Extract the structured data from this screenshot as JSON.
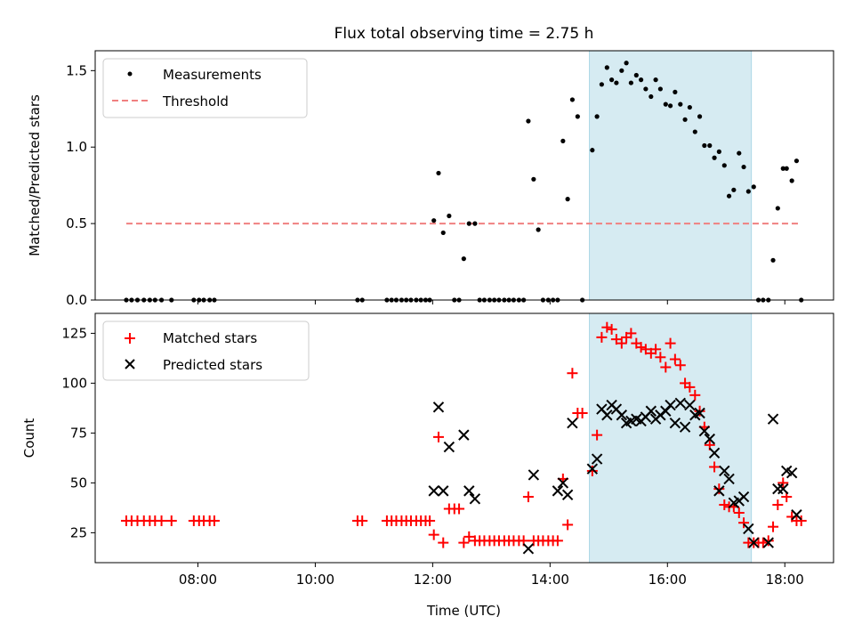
{
  "chart_data": [
    {
      "type": "scatter",
      "title": "Flux total observing time = 2.75 h",
      "xlabel": "",
      "ylabel": "Matched/Predicted stars",
      "xlim": [
        6.25,
        18.83
      ],
      "ylim": [
        0,
        1.63
      ],
      "yticks": [
        0.0,
        0.5,
        1.0,
        1.5
      ],
      "ytick_labels": [
        "0.0",
        "0.5",
        "1.0",
        "1.5"
      ],
      "xticks": [
        8,
        10,
        12,
        14,
        16,
        18
      ],
      "shaded_interval": [
        14.67,
        17.43
      ],
      "legend_position": "upper-left",
      "series": [
        {
          "name": "Measurements",
          "marker": "dot",
          "color": "#000000",
          "x": [
            6.78,
            6.87,
            6.97,
            7.08,
            7.18,
            7.27,
            7.38,
            7.55,
            7.93,
            8.02,
            8.1,
            8.2,
            8.28,
            10.72,
            10.8,
            11.22,
            11.3,
            11.38,
            11.47,
            11.55,
            11.63,
            11.72,
            11.8,
            11.88,
            11.95,
            12.02,
            12.1,
            12.18,
            12.28,
            12.37,
            12.45,
            12.53,
            12.62,
            12.72,
            12.8,
            12.88,
            12.97,
            13.05,
            13.13,
            13.22,
            13.3,
            13.38,
            13.47,
            13.55,
            13.63,
            13.72,
            13.8,
            13.88,
            13.97,
            14.05,
            14.13,
            14.22,
            14.3,
            14.38,
            14.47,
            14.55,
            14.72,
            14.8,
            14.88,
            14.97,
            15.05,
            15.13,
            15.22,
            15.3,
            15.38,
            15.47,
            15.55,
            15.63,
            15.72,
            15.8,
            15.88,
            15.97,
            16.05,
            16.13,
            16.22,
            16.3,
            16.38,
            16.47,
            16.55,
            16.63,
            16.72,
            16.8,
            16.88,
            16.97,
            17.05,
            17.13,
            17.22,
            17.3,
            17.38,
            17.47,
            17.55,
            17.63,
            17.72,
            17.8,
            17.88,
            17.97,
            18.03,
            18.12,
            18.2,
            18.28
          ],
          "y": [
            0,
            0,
            0,
            0,
            0,
            0,
            0,
            0,
            0,
            0,
            0,
            0,
            0,
            0,
            0,
            0,
            0,
            0,
            0,
            0,
            0,
            0,
            0,
            0,
            0,
            0.52,
            0.83,
            0.44,
            0.55,
            0,
            0,
            0.27,
            0.5,
            0.5,
            0,
            0,
            0,
            0,
            0,
            0,
            0,
            0,
            0,
            0,
            1.17,
            0.79,
            0.46,
            0,
            0,
            0,
            0,
            1.04,
            0.66,
            1.31,
            1.2,
            0,
            0.98,
            1.2,
            1.41,
            1.52,
            1.44,
            1.42,
            1.5,
            1.55,
            1.42,
            1.47,
            1.44,
            1.38,
            1.33,
            1.44,
            1.38,
            1.28,
            1.27,
            1.36,
            1.28,
            1.18,
            1.26,
            1.1,
            1.2,
            1.01,
            1.01,
            0.93,
            0.97,
            0.88,
            0.68,
            0.72,
            0.96,
            0.87,
            0.71,
            0.74,
            0,
            0,
            0,
            0.26,
            0.6,
            0.86,
            0.86,
            0.78,
            0.91,
            0
          ]
        },
        {
          "name": "Threshold",
          "marker": "dashed-line",
          "color": "#f08080",
          "x": [
            6.78,
            18.28
          ],
          "y": [
            0.5,
            0.5
          ]
        }
      ]
    },
    {
      "type": "scatter",
      "title": "",
      "xlabel": "Time (UTC)",
      "ylabel": "Count",
      "xlim": [
        6.25,
        18.83
      ],
      "ylim": [
        10,
        135
      ],
      "yticks": [
        25,
        50,
        75,
        100,
        125
      ],
      "ytick_labels": [
        "25",
        "50",
        "75",
        "100",
        "125"
      ],
      "xticks": [
        8,
        10,
        12,
        14,
        16,
        18
      ],
      "xtick_labels": [
        "08:00",
        "10:00",
        "12:00",
        "14:00",
        "16:00",
        "18:00"
      ],
      "shaded_interval": [
        14.67,
        17.43
      ],
      "legend_position": "upper-left",
      "series": [
        {
          "name": "Matched stars",
          "marker": "plus",
          "color": "#ff0000",
          "x": [
            6.78,
            6.87,
            6.97,
            7.08,
            7.18,
            7.27,
            7.38,
            7.55,
            7.93,
            8.02,
            8.1,
            8.2,
            8.28,
            10.72,
            10.8,
            11.22,
            11.3,
            11.38,
            11.47,
            11.55,
            11.63,
            11.72,
            11.8,
            11.88,
            11.95,
            12.02,
            12.1,
            12.18,
            12.28,
            12.37,
            12.45,
            12.53,
            12.62,
            12.72,
            12.8,
            12.88,
            12.97,
            13.05,
            13.13,
            13.22,
            13.3,
            13.38,
            13.47,
            13.55,
            13.63,
            13.72,
            13.8,
            13.88,
            13.97,
            14.05,
            14.13,
            14.22,
            14.3,
            14.38,
            14.47,
            14.55,
            14.72,
            14.8,
            14.88,
            14.97,
            15.05,
            15.13,
            15.22,
            15.3,
            15.38,
            15.47,
            15.55,
            15.63,
            15.72,
            15.8,
            15.88,
            15.97,
            16.05,
            16.13,
            16.22,
            16.3,
            16.38,
            16.47,
            16.55,
            16.63,
            16.72,
            16.8,
            16.88,
            16.97,
            17.05,
            17.13,
            17.22,
            17.3,
            17.38,
            17.47,
            17.55,
            17.63,
            17.72,
            17.8,
            17.88,
            17.97,
            18.03,
            18.12,
            18.2,
            18.28
          ],
          "y": [
            31,
            31,
            31,
            31,
            31,
            31,
            31,
            31,
            31,
            31,
            31,
            31,
            31,
            31,
            31,
            31,
            31,
            31,
            31,
            31,
            31,
            31,
            31,
            31,
            31,
            24,
            73,
            20,
            37,
            37,
            37,
            20,
            23,
            21,
            21,
            21,
            21,
            21,
            21,
            21,
            21,
            21,
            21,
            21,
            43,
            21,
            21,
            21,
            21,
            21,
            21,
            52,
            29,
            105,
            85,
            85,
            56,
            74,
            123,
            128,
            127,
            122,
            120,
            123,
            125,
            120,
            118,
            117,
            115,
            117,
            113,
            108,
            120,
            112,
            109,
            100,
            98,
            94,
            86,
            78,
            69,
            58,
            47,
            39,
            38,
            38,
            35,
            30,
            20,
            20,
            20,
            20,
            21,
            28,
            39,
            50,
            43,
            33,
            31,
            31
          ]
        },
        {
          "name": "Predicted stars",
          "marker": "x",
          "color": "#000000",
          "x": [
            12.02,
            12.1,
            12.18,
            12.28,
            12.53,
            12.62,
            12.72,
            13.63,
            13.72,
            14.13,
            14.22,
            14.3,
            14.38,
            14.72,
            14.8,
            14.88,
            14.97,
            15.05,
            15.13,
            15.22,
            15.3,
            15.38,
            15.47,
            15.55,
            15.63,
            15.72,
            15.8,
            15.88,
            15.97,
            16.05,
            16.13,
            16.22,
            16.3,
            16.38,
            16.47,
            16.55,
            16.63,
            16.72,
            16.8,
            16.88,
            16.97,
            17.05,
            17.13,
            17.22,
            17.3,
            17.38,
            17.47,
            17.72,
            17.8,
            17.88,
            17.97,
            18.03,
            18.12,
            18.2
          ],
          "y": [
            46,
            88,
            46,
            68,
            74,
            46,
            42,
            17,
            54,
            46,
            50,
            44,
            80,
            57,
            62,
            87,
            84,
            89,
            87,
            84,
            80,
            81,
            82,
            81,
            83,
            86,
            82,
            84,
            86,
            89,
            80,
            90,
            78,
            89,
            84,
            85,
            76,
            72,
            65,
            46,
            56,
            52,
            40,
            41,
            43,
            27,
            20,
            20,
            82,
            47,
            47,
            56,
            55,
            34
          ]
        }
      ]
    }
  ]
}
